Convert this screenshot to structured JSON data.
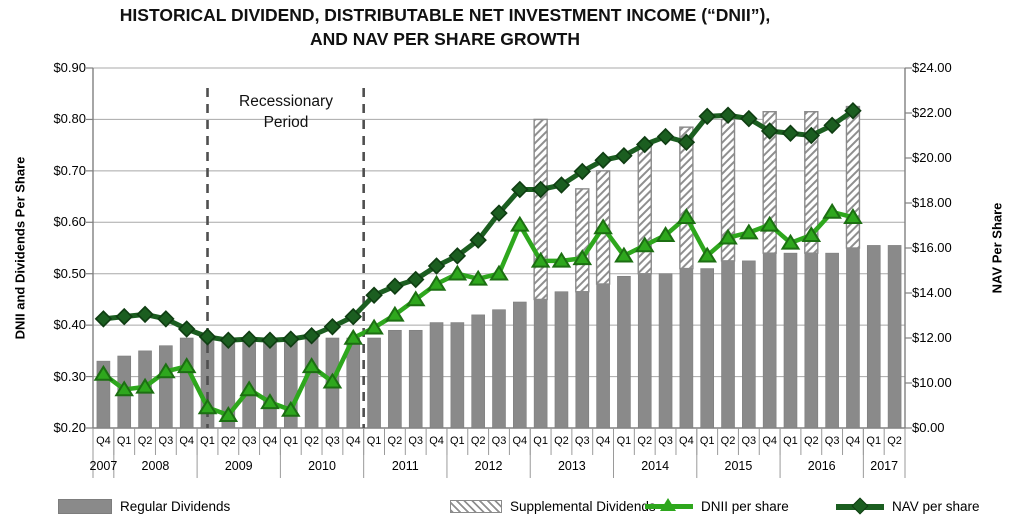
{
  "title": {
    "line1": "HISTORICAL DIVIDEND, DISTRIBUTABLE NET INVESTMENT INCOME (“DNII”),",
    "line2": "AND NAV PER SHARE GROWTH"
  },
  "annotation": {
    "line1": "Recessionary",
    "line2": "Period"
  },
  "legend": {
    "items": [
      {
        "label": "Regular Dividends",
        "type": "bar-solid"
      },
      {
        "label": "Supplemental Dividends",
        "type": "bar-hatched"
      },
      {
        "label": "DNII per share",
        "type": "line-triangle"
      },
      {
        "label": "NAV per share",
        "type": "line-diamond"
      }
    ]
  },
  "colors": {
    "bar_gray": "#8a8a8a",
    "bar_gray_edge": "#7d7d7d",
    "hatch_line": "#8f8f8f",
    "dnii_green": "#2ea71d",
    "dnii_stroke": "#1c6f12",
    "nav_green": "#1b5e20",
    "nav_stroke": "#0f3d12",
    "grid": "#a8a8a8",
    "axis": "#808080",
    "dash": "#4f4f4f",
    "text": "#000000"
  },
  "chart_data": {
    "type": "combo-bar-line",
    "left_axis": {
      "title": "DNII and Dividends Per Share",
      "min": 0.2,
      "max": 0.9,
      "ticks": [
        {
          "label": "$0.90",
          "value": 0.9
        },
        {
          "label": "$0.80",
          "value": 0.8
        },
        {
          "label": "$0.70",
          "value": 0.7
        },
        {
          "label": "$0.60",
          "value": 0.6
        },
        {
          "label": "$0.50",
          "value": 0.5
        },
        {
          "label": "$0.40",
          "value": 0.4
        },
        {
          "label": "$0.30",
          "value": 0.3
        },
        {
          "label": "$0.20",
          "value": 0.2
        }
      ]
    },
    "right_axis": {
      "title": "NAV Per Share",
      "max": 24,
      "major_step": 2,
      "ticks": [
        "$24.00",
        "$22.00",
        "$20.00",
        "$18.00",
        "$16.00",
        "$14.00",
        "$12.00",
        "$10.00"
      ],
      "bottom_label": "$0.00",
      "note": "irregular axis: $0.00 label sits at the plot bottom"
    },
    "year_groups": [
      {
        "label": "2007",
        "quarters": [
          "Q4"
        ]
      },
      {
        "label": "2008",
        "quarters": [
          "Q1",
          "Q2",
          "Q3",
          "Q4"
        ]
      },
      {
        "label": "2009",
        "quarters": [
          "Q1",
          "Q2",
          "Q3",
          "Q4"
        ]
      },
      {
        "label": "2010",
        "quarters": [
          "Q1",
          "Q2",
          "Q3",
          "Q4"
        ]
      },
      {
        "label": "2011",
        "quarters": [
          "Q1",
          "Q2",
          "Q3",
          "Q4"
        ]
      },
      {
        "label": "2012",
        "quarters": [
          "Q1",
          "Q2",
          "Q3",
          "Q4"
        ]
      },
      {
        "label": "2013",
        "quarters": [
          "Q1",
          "Q2",
          "Q3",
          "Q4"
        ]
      },
      {
        "label": "2014",
        "quarters": [
          "Q1",
          "Q2",
          "Q3",
          "Q4"
        ]
      },
      {
        "label": "2015",
        "quarters": [
          "Q1",
          "Q2",
          "Q3",
          "Q4"
        ]
      },
      {
        "label": "2016",
        "quarters": [
          "Q1",
          "Q2",
          "Q3",
          "Q4"
        ]
      },
      {
        "label": "2017",
        "quarters": [
          "Q1",
          "Q2"
        ]
      }
    ],
    "series": {
      "regular_dividends": [
        0.33,
        0.34,
        0.35,
        0.36,
        0.375,
        0.375,
        0.375,
        0.375,
        0.375,
        0.375,
        0.375,
        0.375,
        0.375,
        0.375,
        0.39,
        0.39,
        0.405,
        0.405,
        0.42,
        0.43,
        0.445,
        0.45,
        0.465,
        0.465,
        0.48,
        0.495,
        0.5,
        0.5,
        0.51,
        0.51,
        0.525,
        0.525,
        0.54,
        0.54,
        0.54,
        0.54,
        0.55,
        0.555,
        0.555
      ],
      "supplemental_dividends": [
        0,
        0,
        0,
        0,
        0,
        0,
        0,
        0,
        0,
        0,
        0,
        0,
        0,
        0,
        0,
        0,
        0,
        0,
        0,
        0,
        0,
        0.35,
        0,
        0.2,
        0.22,
        0,
        0.25,
        0,
        0.275,
        0,
        0.275,
        0,
        0.275,
        0,
        0.275,
        0,
        0.275,
        0,
        0
      ],
      "dnii_per_share": [
        0.305,
        0.275,
        0.28,
        0.31,
        0.32,
        0.24,
        0.225,
        0.275,
        0.25,
        0.235,
        0.32,
        0.29,
        0.375,
        0.395,
        0.42,
        0.45,
        0.48,
        0.5,
        0.49,
        0.5,
        0.595,
        0.525,
        0.525,
        0.53,
        0.59,
        0.535,
        0.555,
        0.575,
        0.61,
        0.535,
        0.57,
        0.58,
        0.595,
        0.56,
        0.575,
        0.62,
        0.61,
        null,
        null
      ],
      "nav_per_share": [
        12.85,
        12.95,
        13.05,
        12.85,
        12.4,
        12.05,
        11.9,
        11.95,
        11.9,
        11.95,
        12.1,
        12.5,
        12.95,
        13.9,
        14.3,
        14.6,
        15.2,
        15.65,
        16.35,
        17.55,
        18.6,
        18.6,
        18.8,
        19.4,
        19.9,
        20.1,
        20.6,
        20.95,
        20.7,
        21.85,
        21.9,
        21.75,
        21.2,
        21.1,
        21.0,
        21.45,
        22.1,
        null,
        null
      ]
    },
    "recession": {
      "start_index": 5,
      "end_index": 13
    }
  }
}
